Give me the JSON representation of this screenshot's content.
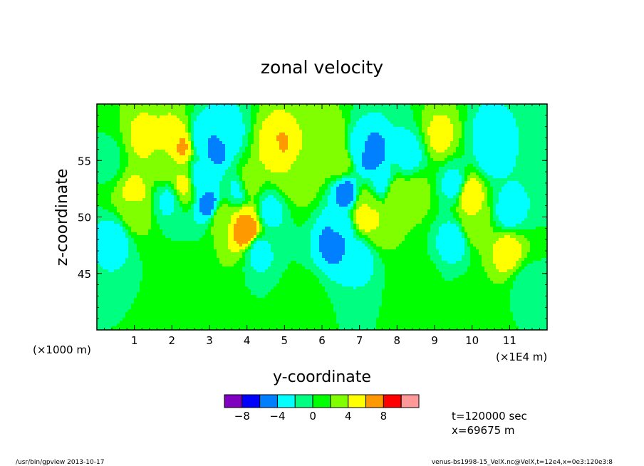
{
  "chart_data": {
    "type": "heatmap",
    "title": "zonal velocity",
    "xlabel": "y-coordinate",
    "ylabel": "z-coordinate",
    "x_unit_left": "(×1000 m)",
    "x_unit_right": "(×1E4 m)",
    "xticks": [
      1,
      2,
      3,
      4,
      5,
      6,
      7,
      8,
      9,
      10,
      11
    ],
    "xtick_labels": [
      "1",
      "2",
      "3",
      "4",
      "5",
      "6",
      "7",
      "8",
      "9",
      "10",
      "11"
    ],
    "xlim": [
      0,
      12
    ],
    "yticks": [
      45,
      50,
      55
    ],
    "ytick_labels": [
      "45",
      "50",
      "55"
    ],
    "ylim": [
      40,
      60
    ],
    "colorbar": {
      "levels": [
        -10,
        -8,
        -6,
        -4,
        -2,
        0,
        2,
        4,
        6,
        8,
        10
      ],
      "tick_values": [
        -8,
        -4,
        0,
        4,
        8
      ],
      "tick_labels": [
        "−8",
        "−4",
        "0",
        "4",
        "8"
      ],
      "colors": [
        "#8000c0",
        "#0000ff",
        "#0080ff",
        "#00ffff",
        "#00ff80",
        "#00ff00",
        "#80ff00",
        "#ffff00",
        "#ff9900",
        "#ff0000"
      ],
      "over_color": "#ff9999"
    },
    "features": [
      {
        "x": 0.45,
        "z": 48.0,
        "value": -3.0
      },
      {
        "x": 1.0,
        "z": 52.0,
        "value": 4.5
      },
      {
        "x": 1.0,
        "z": 50.6,
        "value": 3.5
      },
      {
        "x": 1.25,
        "z": 57.0,
        "value": 4.5
      },
      {
        "x": 1.75,
        "z": 57.0,
        "value": 4.0
      },
      {
        "x": 2.0,
        "z": 57.0,
        "value": 4.5
      },
      {
        "x": 2.25,
        "z": 56.3,
        "value": 6.5
      },
      {
        "x": 1.85,
        "z": 54.5,
        "value": 3.5
      },
      {
        "x": 2.3,
        "z": 52.8,
        "value": 4.5
      },
      {
        "x": 1.9,
        "z": 51.5,
        "value": -2.5
      },
      {
        "x": 2.8,
        "z": 57.0,
        "value": -4.0
      },
      {
        "x": 2.75,
        "z": 53.5,
        "value": -3.5
      },
      {
        "x": 3.2,
        "z": 56.0,
        "value": -4.5
      },
      {
        "x": 3.5,
        "z": 57.4,
        "value": -3.0
      },
      {
        "x": 3.8,
        "z": 52.5,
        "value": -3.0
      },
      {
        "x": 3.0,
        "z": 51.0,
        "value": -5.0
      },
      {
        "x": 3.3,
        "z": 50.0,
        "value": 4.0
      },
      {
        "x": 4.0,
        "z": 53.0,
        "value": 4.0
      },
      {
        "x": 4.0,
        "z": 49.5,
        "value": 6.0
      },
      {
        "x": 4.0,
        "z": 48.8,
        "value": 8.5
      },
      {
        "x": 4.6,
        "z": 50.5,
        "value": -3.0
      },
      {
        "x": 4.3,
        "z": 47.0,
        "value": -3.0
      },
      {
        "x": 4.7,
        "z": 56.0,
        "value": 4.5
      },
      {
        "x": 4.85,
        "z": 56.3,
        "value": 6.5
      },
      {
        "x": 5.2,
        "z": 54.0,
        "value": 4.0
      },
      {
        "x": 5.5,
        "z": 53.5,
        "value": 3.5
      },
      {
        "x": 5.9,
        "z": 55.5,
        "value": 4.0
      },
      {
        "x": 6.2,
        "z": 57.0,
        "value": 4.0
      },
      {
        "x": 6.5,
        "z": 55.0,
        "value": 3.5
      },
      {
        "x": 6.5,
        "z": 49.0,
        "value": -3.5
      },
      {
        "x": 6.35,
        "z": 47.8,
        "value": -5.0
      },
      {
        "x": 6.65,
        "z": 52.0,
        "value": -5.0
      },
      {
        "x": 7.0,
        "z": 56.0,
        "value": -3.5
      },
      {
        "x": 7.3,
        "z": 55.5,
        "value": -5.5
      },
      {
        "x": 7.6,
        "z": 53.0,
        "value": -3.0
      },
      {
        "x": 7.2,
        "z": 51.0,
        "value": 3.5
      },
      {
        "x": 7.15,
        "z": 50.2,
        "value": 6.0
      },
      {
        "x": 7.5,
        "z": 49.5,
        "value": 4.0
      },
      {
        "x": 7.0,
        "z": 46.5,
        "value": -3.0
      },
      {
        "x": 8.3,
        "z": 55.5,
        "value": -3.0
      },
      {
        "x": 7.95,
        "z": 52.0,
        "value": 4.0
      },
      {
        "x": 8.5,
        "z": 52.0,
        "value": 3.0
      },
      {
        "x": 9.15,
        "z": 57.2,
        "value": 4.5
      },
      {
        "x": 9.55,
        "z": 52.8,
        "value": -3.0
      },
      {
        "x": 9.9,
        "z": 52.0,
        "value": 6.0
      },
      {
        "x": 9.5,
        "z": 48.0,
        "value": -3.0
      },
      {
        "x": 10.05,
        "z": 49.5,
        "value": 4.0
      },
      {
        "x": 10.5,
        "z": 57.2,
        "value": -3.0
      },
      {
        "x": 10.5,
        "z": 55.5,
        "value": -3.0
      },
      {
        "x": 10.95,
        "z": 47.0,
        "value": 5.0
      },
      {
        "x": 11.0,
        "z": 50.5,
        "value": -3.0
      },
      {
        "x": 8.5,
        "z": 44.0,
        "value": 1.5
      },
      {
        "x": 2.5,
        "z": 43.0,
        "value": 1.2
      },
      {
        "x": 5.5,
        "z": 42.5,
        "value": 1.3
      },
      {
        "x": 10.0,
        "z": 42.0,
        "value": 1.2
      },
      {
        "x": 11.5,
        "z": 44.0,
        "value": -0.8
      },
      {
        "x": 0.3,
        "z": 55.0,
        "value": -0.5
      }
    ]
  },
  "annotations": {
    "time": "t=120000 sec",
    "xpos": "x=69675 m",
    "footer_left": "/usr/bin/gpview  2013-10-17",
    "footer_right": "venus-bs1998-15_VelX.nc@VelX,t=12e4,x=0e3:120e3:8"
  }
}
